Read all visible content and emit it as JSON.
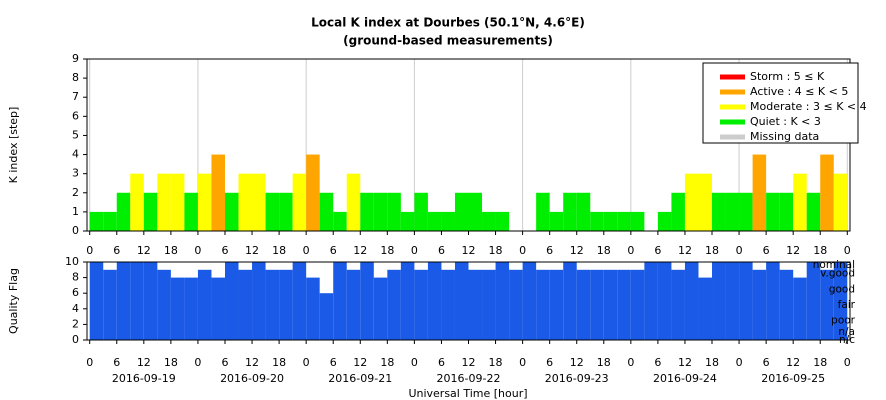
{
  "chart_data": [
    {
      "type": "bar",
      "title": "Local K index at Dourbes (50.1°N, 4.6°E)",
      "subtitle": "(ground-based measurements)",
      "y_label": "K index [step]",
      "x": [
        0,
        3,
        6,
        9,
        12,
        15,
        18,
        21,
        24,
        27,
        30,
        33,
        36,
        39,
        42,
        45,
        48,
        51,
        54,
        57,
        60,
        63,
        66,
        69,
        72,
        75,
        78,
        81,
        84,
        87,
        90,
        93,
        96,
        99,
        102,
        105,
        108,
        111,
        114,
        117,
        120,
        123,
        126,
        129,
        132,
        135,
        138,
        141,
        144,
        147,
        150,
        153,
        156,
        159,
        162,
        165
      ],
      "values": [
        1,
        1,
        2,
        3,
        2,
        3,
        3,
        2,
        3,
        4,
        2,
        3,
        3,
        2,
        2,
        3,
        4,
        2,
        1,
        3,
        2,
        2,
        2,
        1,
        2,
        1,
        1,
        2,
        2,
        1,
        1,
        null,
        null,
        2,
        1,
        2,
        2,
        1,
        1,
        1,
        1,
        null,
        1,
        2,
        3,
        3,
        2,
        2,
        2,
        4,
        2,
        2,
        3,
        2,
        4,
        3
      ],
      "levels": [
        {
          "name": "Storm : 5 ≤ K",
          "color": "#ff0000",
          "min": 5
        },
        {
          "name": "Active : 4 ≤ K < 5",
          "color": "#ffa500",
          "min": 4
        },
        {
          "name": "Moderate : 3 ≤ K < 4",
          "color": "#ffff00",
          "min": 3
        },
        {
          "name": "Quiet : K < 3",
          "color": "#00ee00",
          "min": 0
        },
        {
          "name": "Missing data",
          "color": "#cccccc",
          "min": null
        }
      ],
      "xlim": [
        -0.6,
        168.6
      ],
      "ylim": [
        0,
        9
      ],
      "yticks": [
        0,
        1,
        2,
        3,
        4,
        5,
        6,
        7,
        8,
        9
      ],
      "xticks": [
        {
          "value": 0,
          "label": "0"
        },
        {
          "value": 6,
          "label": "6"
        },
        {
          "value": 12,
          "label": "12"
        },
        {
          "value": 18,
          "label": "18"
        },
        {
          "value": 24,
          "label": "0"
        },
        {
          "value": 30,
          "label": "6"
        },
        {
          "value": 36,
          "label": "12"
        },
        {
          "value": 42,
          "label": "18"
        },
        {
          "value": 48,
          "label": "0"
        },
        {
          "value": 54,
          "label": "6"
        },
        {
          "value": 60,
          "label": "12"
        },
        {
          "value": 66,
          "label": "18"
        },
        {
          "value": 72,
          "label": "0"
        },
        {
          "value": 78,
          "label": "6"
        },
        {
          "value": 84,
          "label": "12"
        },
        {
          "value": 90,
          "label": "18"
        },
        {
          "value": 96,
          "label": "0"
        },
        {
          "value": 102,
          "label": "6"
        },
        {
          "value": 108,
          "label": "12"
        },
        {
          "value": 114,
          "label": "18"
        },
        {
          "value": 120,
          "label": "0"
        },
        {
          "value": 126,
          "label": "6"
        },
        {
          "value": 132,
          "label": "12"
        },
        {
          "value": 138,
          "label": "18"
        },
        {
          "value": 144,
          "label": "0"
        },
        {
          "value": 150,
          "label": "6"
        },
        {
          "value": 156,
          "label": "12"
        },
        {
          "value": 162,
          "label": "18"
        },
        {
          "value": 168,
          "label": "0"
        }
      ],
      "grid": true,
      "legend": "upper right"
    },
    {
      "type": "bar",
      "y_label": "Quality Flag",
      "x_label": "Universal Time [hour]",
      "color": "#1a5ae6",
      "x": [
        0,
        3,
        6,
        9,
        12,
        15,
        18,
        21,
        24,
        27,
        30,
        33,
        36,
        39,
        42,
        45,
        48,
        51,
        54,
        57,
        60,
        63,
        66,
        69,
        72,
        75,
        78,
        81,
        84,
        87,
        90,
        93,
        96,
        99,
        102,
        105,
        108,
        111,
        114,
        117,
        120,
        123,
        126,
        129,
        132,
        135,
        138,
        141,
        144,
        147,
        150,
        153,
        156,
        159,
        162,
        165
      ],
      "values": [
        10,
        9,
        10,
        10,
        10,
        9,
        8,
        8,
        9,
        8,
        10,
        9,
        10,
        9,
        9,
        10,
        8,
        6,
        10,
        9,
        10,
        8,
        9,
        10,
        9,
        10,
        9,
        10,
        9,
        9,
        10,
        9,
        10,
        9,
        9,
        10,
        9,
        9,
        9,
        9,
        9,
        10,
        10,
        9,
        10,
        8,
        10,
        10,
        10,
        9,
        10,
        9,
        8,
        10,
        9,
        10
      ],
      "xlim": [
        -0.6,
        168.6
      ],
      "ylim": [
        0,
        10
      ],
      "yticks": [
        0,
        2,
        4,
        6,
        8,
        10
      ],
      "flag_labels": [
        {
          "value": 9.6,
          "label": "nominal"
        },
        {
          "value": 8.5,
          "label": "v.good"
        },
        {
          "value": 6.5,
          "label": "good"
        },
        {
          "value": 4.5,
          "label": "fair"
        },
        {
          "value": 2.5,
          "label": "poor"
        },
        {
          "value": 1,
          "label": "n/a"
        },
        {
          "value": 0,
          "label": "n/c"
        }
      ],
      "xticks": [
        {
          "value": 0,
          "label": "0"
        },
        {
          "value": 6,
          "label": "6"
        },
        {
          "value": 12,
          "label": "12"
        },
        {
          "value": 18,
          "label": "18"
        },
        {
          "value": 24,
          "label": "0"
        },
        {
          "value": 30,
          "label": "6"
        },
        {
          "value": 36,
          "label": "12"
        },
        {
          "value": 42,
          "label": "18"
        },
        {
          "value": 48,
          "label": "0"
        },
        {
          "value": 54,
          "label": "6"
        },
        {
          "value": 60,
          "label": "12"
        },
        {
          "value": 66,
          "label": "18"
        },
        {
          "value": 72,
          "label": "0"
        },
        {
          "value": 78,
          "label": "6"
        },
        {
          "value": 84,
          "label": "12"
        },
        {
          "value": 90,
          "label": "18"
        },
        {
          "value": 96,
          "label": "0"
        },
        {
          "value": 102,
          "label": "6"
        },
        {
          "value": 108,
          "label": "12"
        },
        {
          "value": 114,
          "label": "18"
        },
        {
          "value": 120,
          "label": "0"
        },
        {
          "value": 126,
          "label": "6"
        },
        {
          "value": 132,
          "label": "12"
        },
        {
          "value": 138,
          "label": "18"
        },
        {
          "value": 144,
          "label": "0"
        },
        {
          "value": 150,
          "label": "6"
        },
        {
          "value": 156,
          "label": "12"
        },
        {
          "value": 162,
          "label": "18"
        },
        {
          "value": 168,
          "label": "0"
        }
      ],
      "date_labels": [
        {
          "value": 12,
          "label": "2016-09-19"
        },
        {
          "value": 36,
          "label": "2016-09-20"
        },
        {
          "value": 60,
          "label": "2016-09-21"
        },
        {
          "value": 84,
          "label": "2016-09-22"
        },
        {
          "value": 108,
          "label": "2016-09-23"
        },
        {
          "value": 132,
          "label": "2016-09-24"
        },
        {
          "value": 156,
          "label": "2016-09-25"
        }
      ]
    }
  ]
}
